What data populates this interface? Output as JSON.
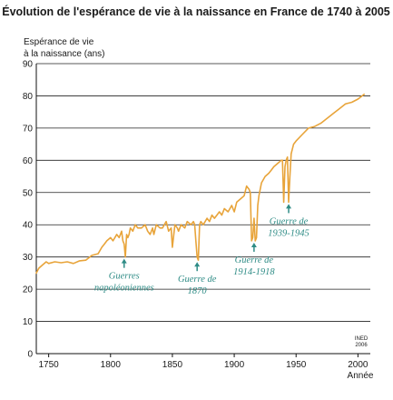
{
  "colors": {
    "line": "#e8a43a",
    "annotation": "#2f8c86",
    "grid": "#222222",
    "axis": "#111111"
  },
  "chart_data": {
    "type": "line",
    "title": "Évolution de l'espérance de vie à la naissance en France de 1740 à 2005",
    "ylabel_lines": [
      "Espérance de vie",
      "à la naissance (ans)"
    ],
    "xlabel": "Année",
    "xlim": [
      1740,
      2010
    ],
    "ylim": [
      0,
      90
    ],
    "x_ticks": [
      1750,
      1800,
      1850,
      1900,
      1950,
      2000
    ],
    "y_ticks": [
      0,
      10,
      20,
      30,
      40,
      50,
      60,
      70,
      80,
      90
    ],
    "grid": "horizontal",
    "credit_lines": [
      "INED",
      "2006"
    ],
    "series": [
      {
        "x": [
          1740,
          1742,
          1745,
          1748,
          1750,
          1755,
          1760,
          1765,
          1770,
          1775,
          1780,
          1785,
          1790,
          1793,
          1795,
          1797,
          1800,
          1802,
          1805,
          1807,
          1809,
          1810,
          1811,
          1812,
          1813,
          1814,
          1815,
          1816,
          1818,
          1820,
          1822,
          1825,
          1828,
          1830,
          1832,
          1834,
          1835,
          1837,
          1840,
          1842,
          1845,
          1847,
          1849,
          1850,
          1852,
          1854,
          1855,
          1857,
          1860,
          1862,
          1865,
          1867,
          1868,
          1869,
          1870,
          1871,
          1872,
          1873,
          1875,
          1878,
          1880,
          1882,
          1884,
          1886,
          1888,
          1890,
          1892,
          1895,
          1898,
          1900,
          1902,
          1905,
          1908,
          1910,
          1912,
          1913,
          1914,
          1915,
          1916,
          1917,
          1918,
          1919,
          1920,
          1922,
          1925,
          1928,
          1930,
          1932,
          1935,
          1938,
          1939,
          1940,
          1941,
          1942,
          1943,
          1944,
          1945,
          1946,
          1948,
          1950,
          1955,
          1960,
          1965,
          1970,
          1975,
          1980,
          1985,
          1990,
          1995,
          2000,
          2005
        ],
        "y": [
          25,
          26.5,
          27.5,
          28.5,
          28,
          28.5,
          28.2,
          28.5,
          28,
          28.8,
          29,
          30.5,
          31,
          33,
          34,
          35,
          36,
          35,
          37,
          36,
          38,
          35,
          34,
          30,
          37,
          36,
          37,
          39,
          38,
          40,
          39,
          39,
          40,
          38,
          37,
          39,
          37,
          40,
          39,
          39,
          41,
          38,
          39,
          33,
          40,
          39,
          38,
          40,
          39,
          41,
          40,
          41,
          40,
          35,
          30,
          29,
          40,
          41,
          40,
          42,
          41,
          43,
          42,
          43,
          44,
          43,
          45,
          44,
          46,
          44,
          47,
          48,
          49,
          52,
          51,
          50,
          35,
          36,
          42,
          35,
          36,
          46,
          49,
          53,
          55,
          56,
          57,
          58,
          59,
          60,
          60,
          47,
          58,
          60,
          61,
          47,
          55,
          62,
          65,
          66,
          68,
          70,
          70.5,
          71.5,
          73,
          74.5,
          76,
          77.5,
          78,
          79,
          80.5
        ]
      }
    ],
    "annotations": [
      {
        "lines": [
          "Guerres",
          "napoléoniennes"
        ],
        "year": 1811,
        "value": 30
      },
      {
        "lines": [
          "Guerre de",
          "1870"
        ],
        "year": 1870,
        "value": 29
      },
      {
        "lines": [
          "Guerre de",
          "1914-1918"
        ],
        "year": 1916,
        "value": 35
      },
      {
        "lines": [
          "Guerre de",
          "1939-1945"
        ],
        "year": 1944,
        "value": 47
      }
    ]
  }
}
